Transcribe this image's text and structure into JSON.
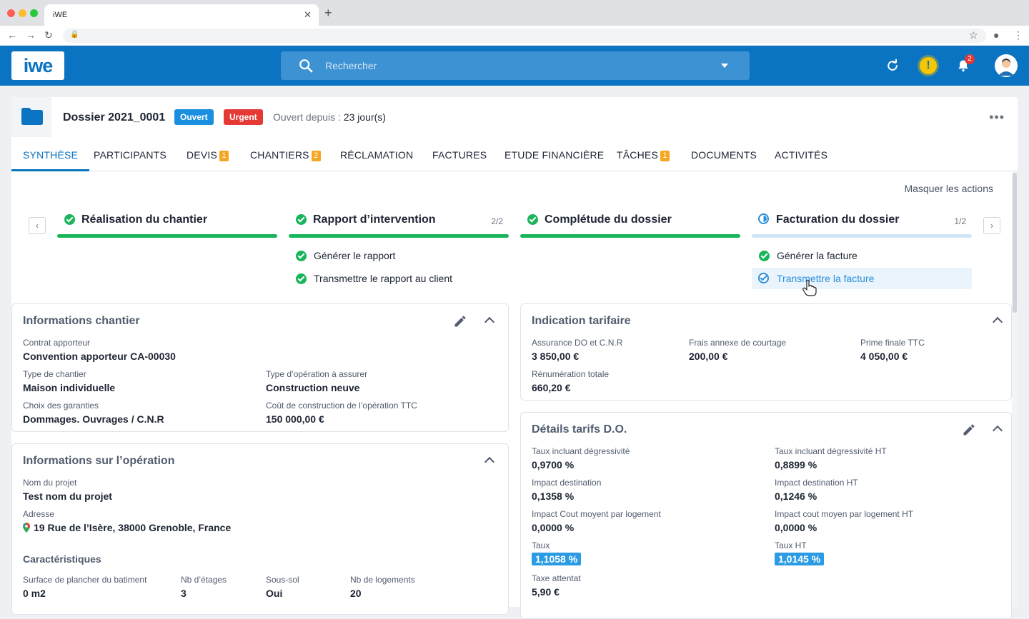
{
  "browser": {
    "tab_title": "iWE"
  },
  "header": {
    "logo": "iwe",
    "search_placeholder": "Rechercher",
    "notifications_count": "2",
    "warning_glyph": "!"
  },
  "dossier": {
    "title": "Dossier 2021_0001",
    "status_open": "Ouvert",
    "status_urgent": "Urgent",
    "since_label": "Ouvert depuis :",
    "since_value": "23 jour(s)",
    "more": "•••"
  },
  "tabs": [
    {
      "label": "SYNTHÈSE",
      "count": ""
    },
    {
      "label": "PARTICIPANTS",
      "count": ""
    },
    {
      "label": "DEVIS",
      "count": "1"
    },
    {
      "label": "CHANTIERS",
      "count": "2"
    },
    {
      "label": "RÉCLAMATION",
      "count": ""
    },
    {
      "label": "FACTURES",
      "count": ""
    },
    {
      "label": "ETUDE FINANCIÈRE",
      "count": ""
    },
    {
      "label": "TÂCHES",
      "count": "1"
    },
    {
      "label": "DOCUMENTS",
      "count": ""
    },
    {
      "label": "ACTIVITÉS",
      "count": ""
    }
  ],
  "actions": {
    "hide_label": "Masquer les actions",
    "steps": [
      {
        "title": "Réalisation du chantier",
        "count": "",
        "progress": 1.0,
        "subs": []
      },
      {
        "title": "Rapport d’intervention",
        "count": "2/2",
        "progress": 1.0,
        "subs": [
          "Générer le rapport",
          "Transmettre le rapport au client"
        ]
      },
      {
        "title": "Complétude du dossier",
        "count": "",
        "progress": 1.0,
        "subs": []
      },
      {
        "title": "Facturation du dossier",
        "count": "1/2",
        "progress": 0.5,
        "subs": [
          "Générer la facture",
          "Transmettre la facture"
        ]
      }
    ]
  },
  "chantier": {
    "title": "Informations chantier",
    "contrat_lbl": "Contrat apporteur",
    "contrat_val": "Convention apporteur CA-00030",
    "type_lbl": "Type de chantier",
    "type_val": "Maison individuelle",
    "operation_lbl": "Type d’opération à assurer",
    "operation_val": "Construction neuve",
    "garanties_lbl": "Choix des garanties",
    "garanties_val": "Dommages. Ouvrages / C.N.R",
    "cout_lbl": "Coût de construction de l’opération TTC",
    "cout_val": "150 000,00 €"
  },
  "operation": {
    "title": "Informations sur l’opération",
    "projet_lbl": "Nom du projet",
    "projet_val": "Test nom du projet",
    "adresse_lbl": "Adresse",
    "adresse_val": "19 Rue de l’Isère, 38000 Grenoble, France",
    "carac_title": "Caractéristiques",
    "surface_lbl": "Surface de plancher du batiment",
    "surface_val": "0 m2",
    "etages_lbl": "Nb d’étages",
    "etages_val": "3",
    "soussol_lbl": "Sous-sol",
    "soussol_val": "Oui",
    "logements_lbl": "Nb de logements",
    "logements_val": "20"
  },
  "tarif": {
    "title": "Indication tarifaire",
    "assurance_lbl": "Assurance DO et C.N.R",
    "assurance_val": "3 850,00 €",
    "frais_lbl": "Frais annexe de courtage",
    "frais_val": "200,00 €",
    "prime_lbl": "Prime finale TTC",
    "prime_val": "4 050,00 €",
    "remu_lbl": "Rénumération totale",
    "remu_val": "660,20 €"
  },
  "details": {
    "title": "Détails tarifs D.O.",
    "taux_degr_lbl": "Taux incluant dégressivité",
    "taux_degr_val": "0,9700 %",
    "taux_degr_ht_lbl": "Taux incluant dégressivité HT",
    "taux_degr_ht_val": "0,8899 %",
    "impact_dest_lbl": "Impact destination",
    "impact_dest_val": "0,1358 %",
    "impact_dest_ht_lbl": "Impact destination HT",
    "impact_dest_ht_val": "0,1246 %",
    "impact_cout_lbl": "Impact Cout moyent par logement",
    "impact_cout_val": "0,0000 %",
    "impact_cout_ht_lbl": "Impact cout moyen par logement HT",
    "impact_cout_ht_val": "0,0000 %",
    "taux_lbl": "Taux",
    "taux_val": "1,1058 %",
    "taux_ht_lbl": "Taux HT",
    "taux_ht_val": "1,0145 %",
    "taxe_lbl": "Taxe attentat",
    "taxe_val": "5,90 €"
  },
  "colors": {
    "brand": "#0a73c2",
    "success": "#19b55a",
    "urgent": "#e53935",
    "open": "#1a8fe0",
    "count": "#f5a623"
  }
}
